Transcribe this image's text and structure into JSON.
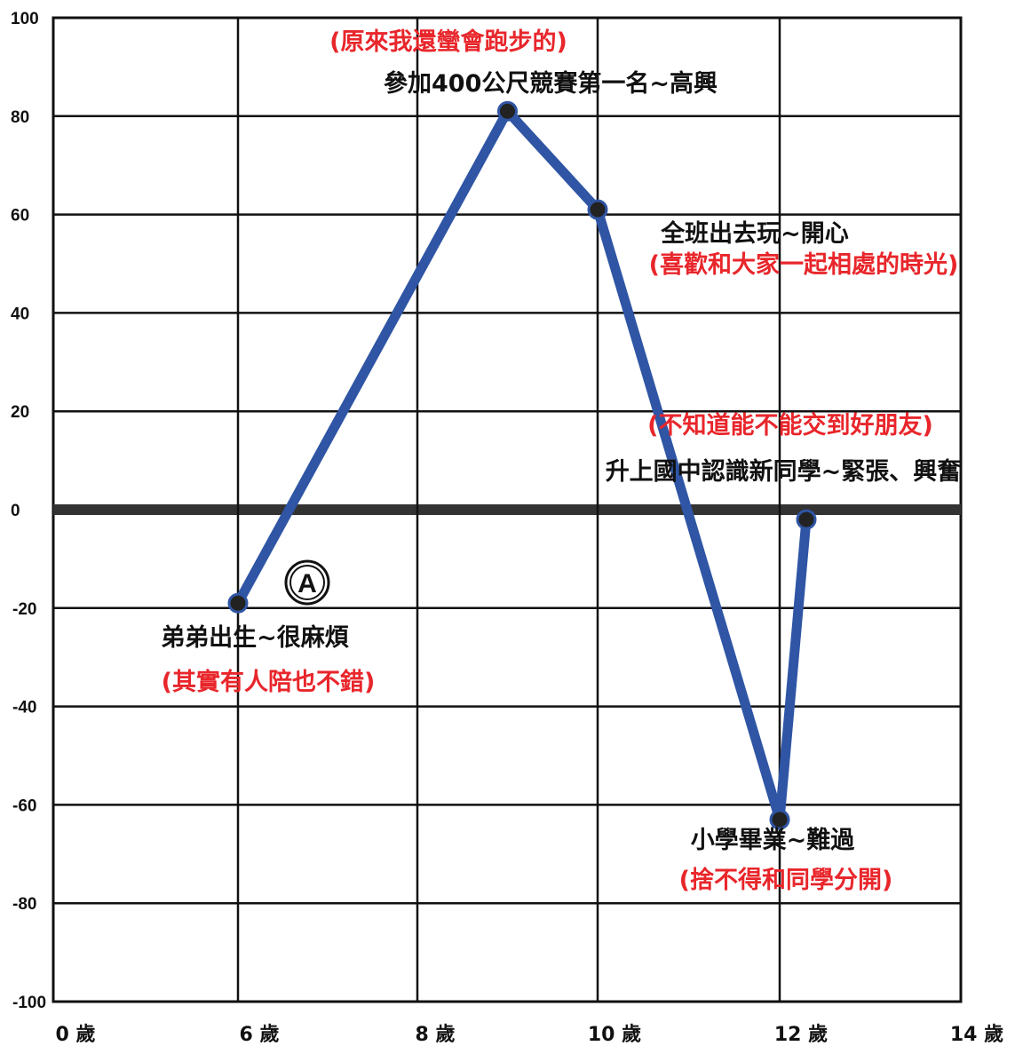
{
  "chart_data": {
    "type": "line",
    "x_tick_labels": [
      "0 歲",
      "6 歲",
      "8 歲",
      "10 歲",
      "12 歲",
      "14 歲"
    ],
    "y_tick_labels": [
      "100",
      "80",
      "60",
      "40",
      "20",
      "0",
      "-20",
      "-40",
      "-60",
      "-80",
      "-100"
    ],
    "ylim": [
      -100,
      100
    ],
    "grid": true,
    "series": [
      {
        "color": "#2f55a4",
        "points": [
          {
            "x": "6 歲",
            "y": -19
          },
          {
            "x": "9 歲",
            "y": 81
          },
          {
            "x": "10 歲",
            "y": 61
          },
          {
            "x": "12 歲",
            "y": -63
          },
          {
            "x": "12 歲",
            "y": -2
          }
        ]
      }
    ],
    "annotations": [
      {
        "id": "birth",
        "lines": [
          "弟弟出生~很麻煩",
          "(其實有人陪也不錯)"
        ]
      },
      {
        "id": "race",
        "lines": [
          "(原來我還蠻會跑步的)",
          "參加400公尺競賽第一名~高興"
        ]
      },
      {
        "id": "outing",
        "lines": [
          "全班出去玩~開心",
          "(喜歡和大家一起相處的時光)"
        ]
      },
      {
        "id": "graduation",
        "lines": [
          "小學畢業~難過",
          "(捨不得和同學分開)"
        ]
      },
      {
        "id": "junior-high",
        "lines": [
          "(不知道能不能交到好朋友)",
          "升上國中認識新同學~緊張、興奮"
        ]
      }
    ],
    "marker_label": "A",
    "colors": {
      "line": "#2f55a4",
      "grid": "#111111",
      "zero_line": "#333333",
      "black_text": "#111111",
      "red_text": "#e8262b"
    }
  }
}
